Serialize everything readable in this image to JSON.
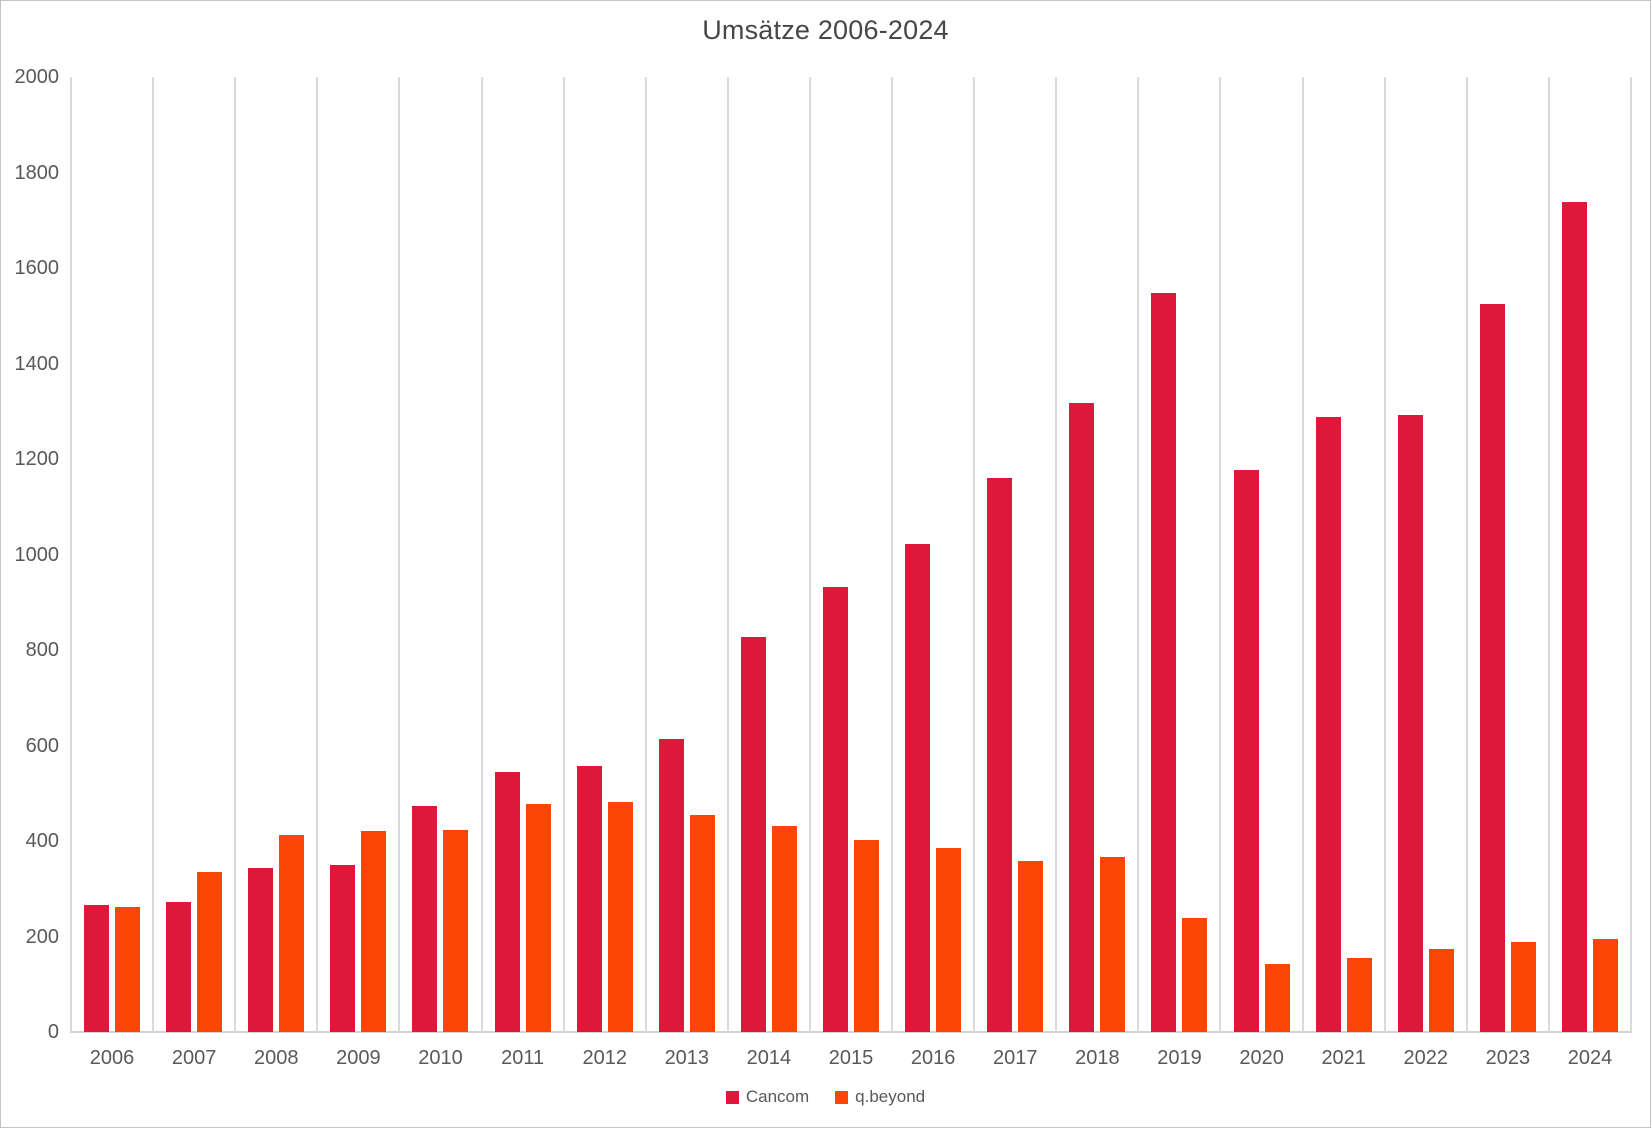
{
  "chart_data": {
    "type": "bar",
    "title": "Umsätze 2006-2024",
    "categories": [
      "2006",
      "2007",
      "2008",
      "2009",
      "2010",
      "2011",
      "2012",
      "2013",
      "2014",
      "2015",
      "2016",
      "2017",
      "2018",
      "2019",
      "2020",
      "2021",
      "2022",
      "2023",
      "2024"
    ],
    "series": [
      {
        "name": "Cancom",
        "color": "#DE183A",
        "values": [
          265,
          273,
          344,
          350,
          474,
          544,
          558,
          613,
          828,
          932,
          1023,
          1161,
          1318,
          1548,
          1177,
          1289,
          1292,
          1524,
          1738
        ]
      },
      {
        "name": "q.beyond",
        "color": "#FB4505",
        "values": [
          262,
          335,
          413,
          420,
          422,
          478,
          481,
          455,
          431,
          403,
          386,
          358,
          366,
          238,
          143,
          155,
          173,
          189,
          195
        ]
      }
    ],
    "xlabel": "",
    "ylabel": "",
    "ylim": [
      0,
      2000
    ],
    "yticks": [
      0,
      200,
      400,
      600,
      800,
      1000,
      1200,
      1400,
      1600,
      1800,
      2000
    ],
    "grid": "vertical-category-gridlines-only",
    "legend_position": "bottom-center",
    "colors": {
      "gridline": "#DADADA",
      "axis_line": "#D2D2D2",
      "title_text": "#474747",
      "tick_text": "#595959",
      "background": "#FFFFFF",
      "frame_border": "#C3C3C3"
    }
  }
}
